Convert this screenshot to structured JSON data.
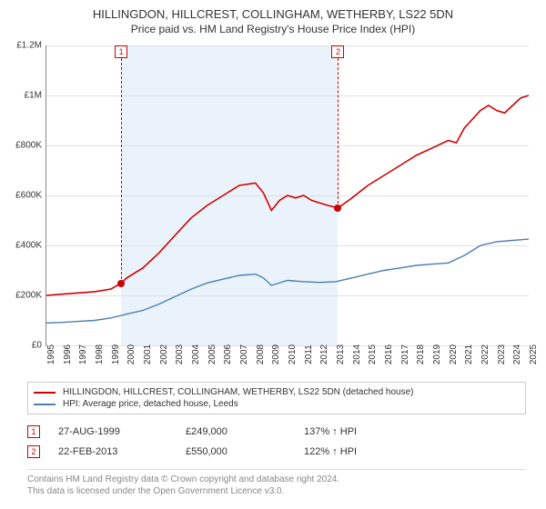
{
  "title": "HILLINGDON, HILLCREST, COLLINGHAM, WETHERBY, LS22 5DN",
  "subtitle": "Price paid vs. HM Land Registry's House Price Index (HPI)",
  "chart": {
    "type": "line",
    "background_color": "#ffffff",
    "highlight_band_color": "#eaf3fb",
    "highlight_band_xstart": 1999.65,
    "highlight_band_xend": 2013.14,
    "grid_color": "#e0e0e0",
    "axis_color": "#888888",
    "xlim": [
      1995,
      2025
    ],
    "ylim": [
      0,
      1200000
    ],
    "ytick_step": 200000,
    "yticks": [
      {
        "v": 0,
        "label": "£0"
      },
      {
        "v": 200000,
        "label": "£200K"
      },
      {
        "v": 400000,
        "label": "£400K"
      },
      {
        "v": 600000,
        "label": "£600K"
      },
      {
        "v": 800000,
        "label": "£800K"
      },
      {
        "v": 1000000,
        "label": "£1M"
      },
      {
        "v": 1200000,
        "label": "£1.2M"
      }
    ],
    "xticks": [
      1995,
      1996,
      1997,
      1998,
      1999,
      2000,
      2001,
      2002,
      2003,
      2004,
      2005,
      2006,
      2007,
      2008,
      2009,
      2010,
      2011,
      2012,
      2013,
      2014,
      2015,
      2016,
      2017,
      2018,
      2019,
      2020,
      2021,
      2022,
      2023,
      2024,
      2025
    ],
    "label_fontsize": 10,
    "series": [
      {
        "name": "price_paid",
        "color": "#d00000",
        "line_width": 1.6,
        "points": [
          [
            1995,
            200000
          ],
          [
            1996,
            205000
          ],
          [
            1997,
            210000
          ],
          [
            1998,
            215000
          ],
          [
            1998.5,
            220000
          ],
          [
            1999,
            225000
          ],
          [
            1999.65,
            249000
          ],
          [
            2000,
            270000
          ],
          [
            2001,
            310000
          ],
          [
            2002,
            370000
          ],
          [
            2003,
            440000
          ],
          [
            2004,
            510000
          ],
          [
            2005,
            560000
          ],
          [
            2006,
            600000
          ],
          [
            2007,
            640000
          ],
          [
            2008,
            650000
          ],
          [
            2008.5,
            610000
          ],
          [
            2009,
            540000
          ],
          [
            2009.5,
            580000
          ],
          [
            2010,
            600000
          ],
          [
            2010.5,
            590000
          ],
          [
            2011,
            600000
          ],
          [
            2011.5,
            580000
          ],
          [
            2012,
            570000
          ],
          [
            2012.5,
            560000
          ],
          [
            2013.14,
            550000
          ],
          [
            2014,
            590000
          ],
          [
            2015,
            640000
          ],
          [
            2016,
            680000
          ],
          [
            2017,
            720000
          ],
          [
            2018,
            760000
          ],
          [
            2019,
            790000
          ],
          [
            2020,
            820000
          ],
          [
            2020.5,
            810000
          ],
          [
            2021,
            870000
          ],
          [
            2022,
            940000
          ],
          [
            2022.5,
            960000
          ],
          [
            2023,
            940000
          ],
          [
            2023.5,
            930000
          ],
          [
            2024,
            960000
          ],
          [
            2024.5,
            990000
          ],
          [
            2025,
            1000000
          ]
        ]
      },
      {
        "name": "hpi",
        "color": "#4a7fb0",
        "line_width": 1.4,
        "points": [
          [
            1995,
            90000
          ],
          [
            1996,
            92000
          ],
          [
            1997,
            96000
          ],
          [
            1998,
            100000
          ],
          [
            1999,
            110000
          ],
          [
            2000,
            125000
          ],
          [
            2001,
            140000
          ],
          [
            2002,
            165000
          ],
          [
            2003,
            195000
          ],
          [
            2004,
            225000
          ],
          [
            2005,
            250000
          ],
          [
            2006,
            265000
          ],
          [
            2007,
            280000
          ],
          [
            2008,
            285000
          ],
          [
            2008.5,
            270000
          ],
          [
            2009,
            240000
          ],
          [
            2010,
            260000
          ],
          [
            2011,
            255000
          ],
          [
            2012,
            252000
          ],
          [
            2013,
            255000
          ],
          [
            2014,
            270000
          ],
          [
            2015,
            285000
          ],
          [
            2016,
            300000
          ],
          [
            2017,
            310000
          ],
          [
            2018,
            320000
          ],
          [
            2019,
            325000
          ],
          [
            2020,
            330000
          ],
          [
            2021,
            360000
          ],
          [
            2022,
            400000
          ],
          [
            2023,
            415000
          ],
          [
            2024,
            420000
          ],
          [
            2025,
            425000
          ]
        ]
      }
    ],
    "markers": [
      {
        "id": "1",
        "x": 1999.65,
        "y": 249000
      },
      {
        "id": "2",
        "x": 2013.14,
        "y": 550000
      }
    ]
  },
  "legend": {
    "items": [
      {
        "color": "#d00000",
        "text": "HILLINGDON, HILLCREST, COLLINGHAM, WETHERBY, LS22 5DN (detached house)"
      },
      {
        "color": "#4a7fb0",
        "text": "HPI: Average price, detached house, Leeds"
      }
    ]
  },
  "sales": [
    {
      "id": "1",
      "date": "27-AUG-1999",
      "price": "£249,000",
      "delta": "137% ↑ HPI"
    },
    {
      "id": "2",
      "date": "22-FEB-2013",
      "price": "£550,000",
      "delta": "122% ↑ HPI"
    }
  ],
  "footer": {
    "line1": "Contains HM Land Registry data © Crown copyright and database right 2024.",
    "line2": "This data is licensed under the Open Government Licence v3.0."
  }
}
